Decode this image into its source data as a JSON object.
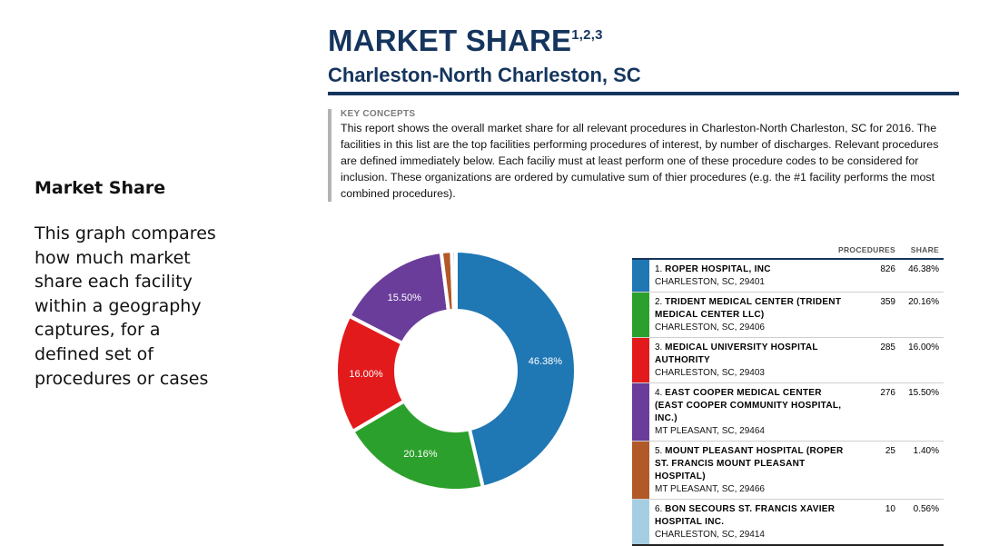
{
  "left": {
    "title": "Market Share",
    "description": "This graph compares how much market share each facility within a geography captures, for a defined set of procedures or cases"
  },
  "header": {
    "title": "MARKET SHARE",
    "title_superscript": "1,2,3",
    "subtitle": "Charleston-North Charleston, SC"
  },
  "key_concepts": {
    "label": "KEY CONCEPTS",
    "text": "This report shows the overall market share for all relevant procedures in Charleston-North Charleston, SC for 2016. The facilities in this list are the top facilities performing procedures of interest, by number of discharges. Relevant procedures are defined immediately below. Each faciliy must at least perform one of these procedure codes to be considered for inclusion. These organizations are ordered by cumulative sum of thier procedures (e.g. the #1 facility performs the most combined procedures)."
  },
  "table": {
    "col_procedures": "PROCEDURES",
    "col_share": "SHARE"
  },
  "chart_data": {
    "type": "pie",
    "donut": true,
    "categories": [
      "ROPER HOSPITAL, INC",
      "TRIDENT MEDICAL CENTER (TRIDENT MEDICAL CENTER LLC)",
      "MEDICAL UNIVERSITY HOSPITAL AUTHORITY",
      "EAST COOPER MEDICAL CENTER (EAST COOPER COMMUNITY HOSPITAL, INC.)",
      "MOUNT PLEASANT HOSPITAL (ROPER ST. FRANCIS MOUNT PLEASANT HOSPITAL)",
      "BON SECOURS ST. FRANCIS XAVIER HOSPITAL INC."
    ],
    "values": [
      826,
      359,
      285,
      276,
      25,
      10
    ],
    "shares": [
      46.38,
      20.16,
      16.0,
      15.5,
      1.4,
      0.56
    ],
    "data_labels": [
      "46.38%",
      "20.16%",
      "16.00%",
      "15.50%",
      "",
      ""
    ],
    "colors": [
      "#1f77b4",
      "#2ca02c",
      "#e31a1c",
      "#6a3d9a",
      "#b15928",
      "#a6cee3"
    ],
    "facilities": [
      {
        "rank": "1.",
        "name": "ROPER HOSPITAL, INC",
        "address": "CHARLESTON, SC, 29401",
        "procedures": "826",
        "share": "46.38%"
      },
      {
        "rank": "2.",
        "name": "TRIDENT MEDICAL CENTER (TRIDENT MEDICAL CENTER LLC)",
        "address": "CHARLESTON, SC, 29406",
        "procedures": "359",
        "share": "20.16%"
      },
      {
        "rank": "3.",
        "name": "MEDICAL UNIVERSITY HOSPITAL AUTHORITY",
        "address": "CHARLESTON, SC, 29403",
        "procedures": "285",
        "share": "16.00%"
      },
      {
        "rank": "4.",
        "name": "EAST COOPER MEDICAL CENTER (EAST COOPER COMMUNITY HOSPITAL, INC.)",
        "address": "MT PLEASANT, SC, 29464",
        "procedures": "276",
        "share": "15.50%"
      },
      {
        "rank": "5.",
        "name": "MOUNT PLEASANT HOSPITAL (ROPER ST. FRANCIS MOUNT PLEASANT HOSPITAL)",
        "address": "MT PLEASANT, SC, 29466",
        "procedures": "25",
        "share": "1.40%"
      },
      {
        "rank": "6.",
        "name": "BON SECOURS ST. FRANCIS XAVIER HOSPITAL INC.",
        "address": "CHARLESTON, SC, 29414",
        "procedures": "10",
        "share": "0.56%"
      }
    ]
  }
}
